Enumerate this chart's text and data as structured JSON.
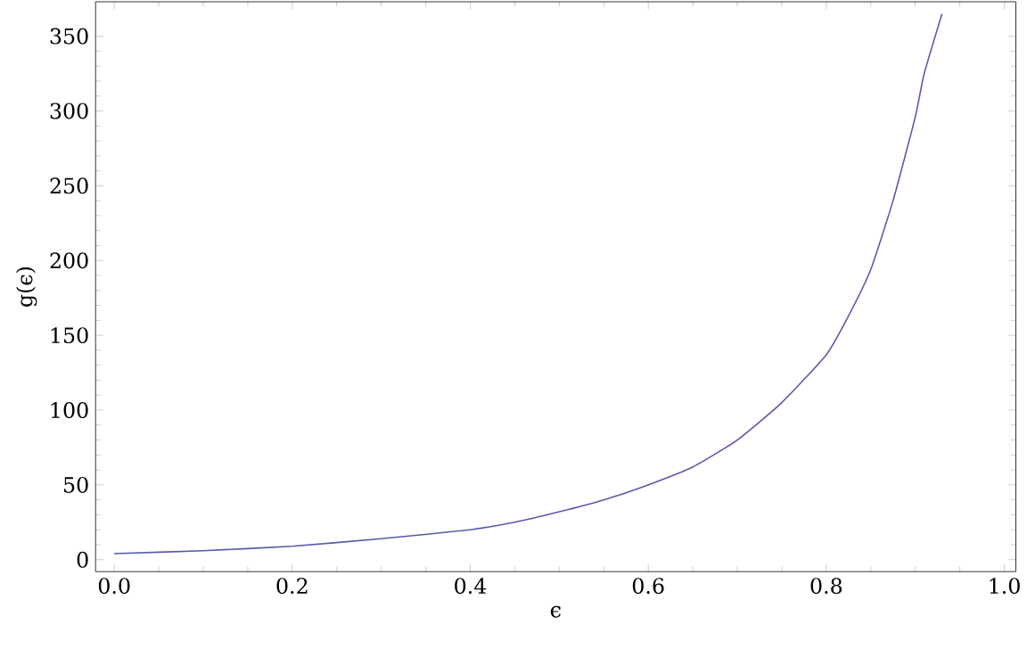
{
  "chart_data": {
    "type": "line",
    "xlabel": "ϵ",
    "ylabel": "g(ϵ)",
    "xlim": [
      -0.021,
      1.013
    ],
    "ylim": [
      -8,
      373
    ],
    "xticks": [
      {
        "value": 0,
        "label": "0.0"
      },
      0.2,
      0.4,
      0.6,
      0.8,
      {
        "value": 1,
        "label": "1.0"
      }
    ],
    "yticks": [
      0,
      50,
      100,
      150,
      200,
      250,
      300,
      350
    ],
    "grid": false,
    "line_style": "solid",
    "marker": "none",
    "x": [
      0,
      0.1,
      0.2,
      0.3,
      0.4,
      0.45,
      0.5,
      0.55,
      0.6,
      0.65,
      0.7,
      0.75,
      0.8,
      0.825,
      0.85,
      0.875,
      0.9,
      0.91,
      0.93
    ],
    "series": [
      {
        "color": "#5a5aaa",
        "values": [
          4,
          6,
          9,
          14,
          20,
          25,
          32,
          40,
          50,
          62,
          80,
          105,
          137,
          163,
          194,
          240,
          296,
          325,
          365
        ]
      }
    ]
  }
}
